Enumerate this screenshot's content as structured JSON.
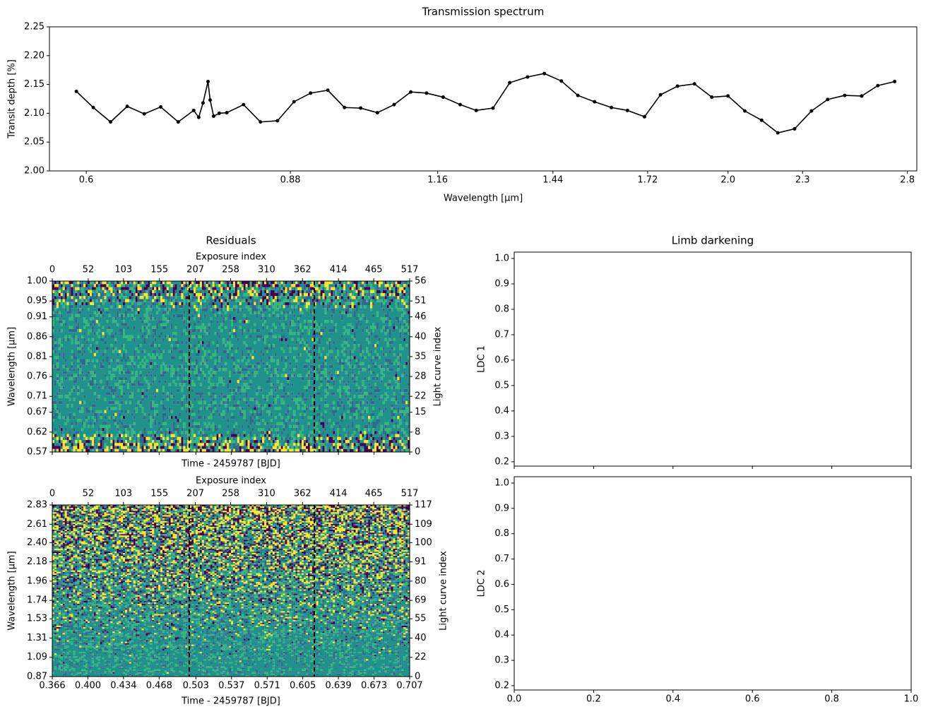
{
  "chart_data": [
    {
      "type": "line",
      "title": "Transmission spectrum",
      "x_label": "Wavelength [μm]",
      "y_label": "Transit depth [%]",
      "color": "#000000",
      "xscale": "log",
      "x": [
        0.589,
        0.608,
        0.628,
        0.648,
        0.669,
        0.69,
        0.713,
        0.734,
        0.741,
        0.747,
        0.754,
        0.757,
        0.762,
        0.77,
        0.781,
        0.806,
        0.832,
        0.859,
        0.886,
        0.914,
        0.944,
        0.974,
        1.004,
        1.036,
        1.069,
        1.103,
        1.136,
        1.172,
        1.21,
        1.247,
        1.287,
        1.328,
        1.373,
        1.417,
        1.463,
        1.509,
        1.557,
        1.607,
        1.656,
        1.71,
        1.762,
        1.819,
        1.878,
        1.94,
        2.0,
        2.064,
        2.13,
        2.196,
        2.266,
        2.339,
        2.411,
        2.489,
        2.57,
        2.649,
        2.734
      ],
      "values": [
        2.138,
        2.11,
        2.085,
        2.112,
        2.099,
        2.111,
        2.085,
        2.105,
        2.093,
        2.118,
        2.155,
        2.123,
        2.095,
        2.1,
        2.101,
        2.115,
        2.085,
        2.087,
        2.12,
        2.135,
        2.14,
        2.11,
        2.109,
        2.101,
        2.115,
        2.137,
        2.135,
        2.128,
        2.115,
        2.105,
        2.109,
        2.153,
        2.163,
        2.169,
        2.156,
        2.131,
        2.12,
        2.11,
        2.105,
        2.094,
        2.132,
        2.147,
        2.151,
        2.128,
        2.13,
        2.104,
        2.088,
        2.066,
        2.073,
        2.104,
        2.124,
        2.131,
        2.13,
        2.148,
        2.155
      ],
      "xlim": [
        0.56,
        2.85
      ],
      "xticks": [
        0.6,
        0.88,
        1.16,
        1.44,
        1.72,
        {
          "value": 2,
          "label": "2.0"
        },
        2.3,
        2.8
      ],
      "ylim": [
        2,
        2.25
      ],
      "yticks": [
        {
          "value": 2,
          "label": "2.00"
        },
        2.05,
        {
          "value": 2.1,
          "label": "2.10"
        },
        2.15,
        {
          "value": 2.2,
          "label": "2.20"
        },
        2.25
      ]
    },
    {
      "type": "heatmap",
      "title": "Residuals",
      "x_label": "Time - 2459787 [BJD]",
      "x2_label": "Exposure index",
      "y_label": "Wavelength [μm]",
      "y2_label": "Light curve index",
      "colors": [
        "#440154",
        "#31688e",
        "#21918c",
        "#35b779",
        "#fde725"
      ],
      "show_xtick_labels": false,
      "xlim": [
        0.366,
        0.707
      ],
      "xticks": [
        0.366,
        {
          "value": 0.4,
          "label": "0.400"
        },
        0.434,
        0.468,
        0.503,
        0.537,
        0.571,
        0.605,
        0.639,
        0.673,
        0.707
      ],
      "x2lim": [
        0,
        517
      ],
      "x2ticks": [
        0,
        52,
        103,
        155,
        207,
        258,
        310,
        362,
        414,
        465,
        517
      ],
      "vlines": [
        0.4967,
        0.616
      ],
      "ylim": [
        0.57,
        1
      ],
      "yticks": [
        0.57,
        0.62,
        0.67,
        0.71,
        0.76,
        0.81,
        0.86,
        0.91,
        0.95,
        {
          "value": 1,
          "label": "1.00"
        }
      ],
      "y2lim": [
        0,
        56
      ],
      "y2ticks": [
        0,
        8,
        15,
        22,
        28,
        35,
        40,
        46,
        51,
        56
      ]
    },
    {
      "type": "heatmap",
      "x_label": "Time - 2459787 [BJD]",
      "x2_label": "Exposure index",
      "y_label": "Wavelength [μm]",
      "y2_label": "Light curve index",
      "colors": [
        "#440154",
        "#31688e",
        "#21918c",
        "#35b779",
        "#fde725"
      ],
      "show_xtick_labels": true,
      "xlim": [
        0.366,
        0.707
      ],
      "xticks": [
        0.366,
        {
          "value": 0.4,
          "label": "0.400"
        },
        0.434,
        0.468,
        0.503,
        0.537,
        0.571,
        0.605,
        0.639,
        0.673,
        0.707
      ],
      "x2lim": [
        0,
        517
      ],
      "x2ticks": [
        0,
        52,
        103,
        155,
        207,
        258,
        310,
        362,
        414,
        465,
        517
      ],
      "vlines": [
        0.4967,
        0.616
      ],
      "ylim": [
        0.87,
        2.83
      ],
      "yticks": [
        0.87,
        1.09,
        1.31,
        1.53,
        1.74,
        1.96,
        2.18,
        {
          "value": 2.4,
          "label": "2.40"
        },
        2.61,
        2.83
      ],
      "y2lim": [
        0,
        117
      ],
      "y2ticks": [
        0,
        22,
        40,
        55,
        69,
        80,
        91,
        100,
        109,
        117
      ]
    },
    {
      "type": "empty",
      "title": "Limb darkening",
      "y_label": "LDC 1",
      "show_xtick_labels": false,
      "xlim": [
        0,
        1
      ],
      "xticks": [
        {
          "value": 0,
          "label": "0.0"
        },
        0.2,
        0.4,
        0.6,
        0.8,
        {
          "value": 1,
          "label": "1.0"
        }
      ],
      "ylim": [
        0.183,
        1.025
      ],
      "yticks": [
        0.2,
        0.3,
        0.4,
        0.5,
        0.6,
        0.7,
        0.8,
        0.9,
        {
          "value": 1,
          "label": "1.0"
        }
      ]
    },
    {
      "type": "empty",
      "y_label": "LDC 2",
      "show_xtick_labels": true,
      "xlim": [
        0,
        1
      ],
      "xticks": [
        {
          "value": 0,
          "label": "0.0"
        },
        0.2,
        0.4,
        0.6,
        0.8,
        {
          "value": 1,
          "label": "1.0"
        }
      ],
      "ylim": [
        0.183,
        1.025
      ],
      "yticks": [
        0.2,
        0.3,
        0.4,
        0.5,
        0.6,
        0.7,
        0.8,
        0.9,
        {
          "value": 1,
          "label": "1.0"
        }
      ]
    }
  ]
}
